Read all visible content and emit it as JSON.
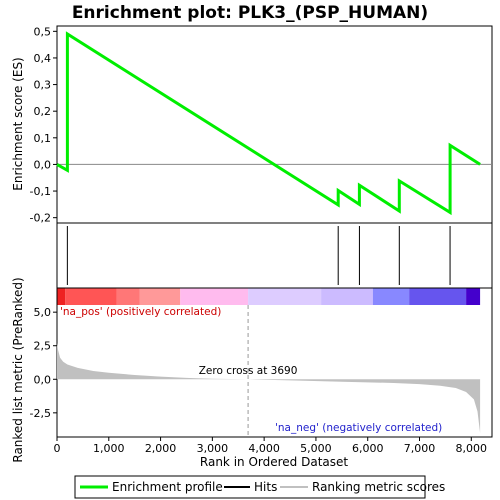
{
  "chart_data": {
    "type": "line",
    "title": "Enrichment plot: PLK3_(PSP_HUMAN)",
    "xlabel": "Rank in Ordered Dataset",
    "xlim": [
      0,
      8400
    ],
    "x_ticks": [
      0,
      1000,
      2000,
      3000,
      4000,
      5000,
      6000,
      7000,
      8000
    ],
    "x_tick_labels": [
      "0",
      "1,000",
      "2,000",
      "3,000",
      "4,000",
      "5,000",
      "6,000",
      "7,000",
      "8,000"
    ],
    "es_panel": {
      "ylabel": "Enrichment score (ES)",
      "ylim": [
        -0.22,
        0.52
      ],
      "y_ticks": [
        -0.2,
        -0.1,
        0.0,
        0.1,
        0.2,
        0.3,
        0.4,
        0.5
      ],
      "y_tick_labels": [
        "-0,2",
        "-0,1",
        "0,0",
        "0,1",
        "0,2",
        "0,3",
        "0,4",
        "0,5"
      ],
      "series": [
        {
          "name": "Enrichment profile",
          "color": "#00ee00",
          "x": [
            0,
            200,
            200,
            5430,
            5430,
            5840,
            5840,
            6610,
            6610,
            7590,
            7590,
            8170
          ],
          "y": [
            0.0,
            -0.022,
            0.49,
            -0.152,
            -0.098,
            -0.15,
            -0.078,
            -0.175,
            -0.062,
            -0.18,
            0.072,
            0.0
          ]
        }
      ]
    },
    "hits": {
      "name": "Hits",
      "positions": [
        200,
        5430,
        5840,
        6610,
        7590
      ]
    },
    "heatmap_bar": {
      "segments": [
        {
          "x0": 0,
          "x1": 160,
          "color": "#ee2222"
        },
        {
          "x0": 160,
          "x1": 1150,
          "color": "#ff5555"
        },
        {
          "x0": 1150,
          "x1": 1600,
          "color": "#ff7777"
        },
        {
          "x0": 1600,
          "x1": 2380,
          "color": "#ff9999"
        },
        {
          "x0": 2380,
          "x1": 3690,
          "color": "#ffbbee"
        },
        {
          "x0": 3690,
          "x1": 5100,
          "color": "#ddccff"
        },
        {
          "x0": 5100,
          "x1": 6100,
          "color": "#ccbbff"
        },
        {
          "x0": 6100,
          "x1": 6800,
          "color": "#8888ff"
        },
        {
          "x0": 6800,
          "x1": 7900,
          "color": "#6655ee"
        },
        {
          "x0": 7900,
          "x1": 8170,
          "color": "#4400cc"
        }
      ]
    },
    "ranked_panel": {
      "name": "Ranking metric scores",
      "ylabel": "Ranked list metric (PreRanked)",
      "ylim": [
        -4.3,
        6.8
      ],
      "y_ticks": [
        -2.5,
        0.0,
        2.5,
        5.0
      ],
      "y_tick_labels": [
        "-2,5",
        "0,0",
        "2,5",
        "5,0"
      ],
      "fill_color": "#c0c0c0",
      "x": [
        0,
        20,
        60,
        120,
        200,
        400,
        700,
        1000,
        1500,
        2000,
        2500,
        3000,
        3690,
        4500,
        5500,
        6500,
        7000,
        7400,
        7700,
        7900,
        8050,
        8120,
        8170
      ],
      "y": [
        2.7,
        2.2,
        1.6,
        1.3,
        1.1,
        0.85,
        0.62,
        0.48,
        0.32,
        0.2,
        0.1,
        0.04,
        0.0,
        -0.08,
        -0.18,
        -0.28,
        -0.36,
        -0.48,
        -0.65,
        -0.95,
        -1.5,
        -2.4,
        -4.0
      ]
    },
    "zero_cross": {
      "x": 3690,
      "label": "Zero cross at 3690"
    },
    "annotations": {
      "pos_label": "'na_pos' (positively correlated)",
      "neg_label": "'na_neg' (negatively correlated)"
    },
    "legend": {
      "entries": [
        {
          "label": "Enrichment profile",
          "color": "#00ee00"
        },
        {
          "label": "Hits",
          "color": "#000000"
        },
        {
          "label": "Ranking metric scores",
          "color": "#c0c0c0"
        }
      ]
    }
  }
}
